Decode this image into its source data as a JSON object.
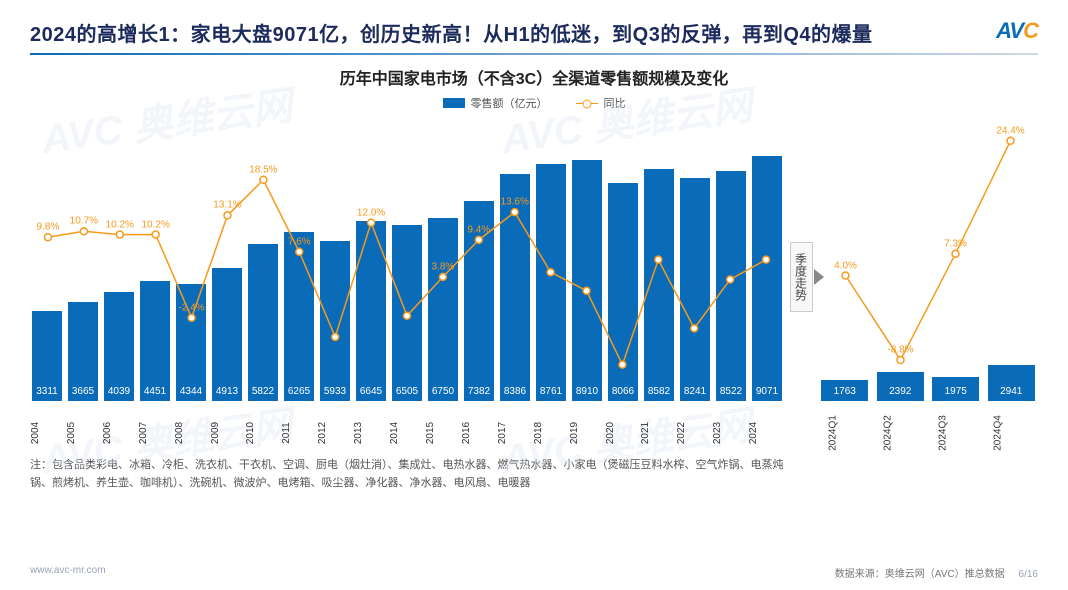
{
  "header": {
    "title": "2024的高增长1：家电大盘9071亿，创历史新高！从H1的低迷，到Q3的反弹，再到Q4的爆量",
    "logo_main": "AV",
    "logo_accent": "C"
  },
  "chart": {
    "title": "历年中国家电市场（不含3C）全渠道零售额规模及变化",
    "legend_bar": "零售额（亿元）",
    "legend_line": "同比",
    "divider_label": "季度走势",
    "main": {
      "type": "bar+line",
      "bar_color": "#0a6bb8",
      "line_color": "#f59a1d",
      "value_text_color": "#ffffff",
      "y_max": 10500,
      "line_y_min": -15,
      "line_y_max": 28,
      "categories": [
        "2004",
        "2005",
        "2006",
        "2007",
        "2008",
        "2009",
        "2010",
        "2011",
        "2012",
        "2013",
        "2014",
        "2015",
        "2016",
        "2017",
        "2018",
        "2019",
        "2020",
        "2021",
        "2022",
        "2023",
        "2024"
      ],
      "values": [
        3311,
        3665,
        4039,
        4451,
        4344,
        4913,
        5822,
        6265,
        5933,
        6645,
        6505,
        6750,
        7382,
        8386,
        8761,
        8910,
        8066,
        8582,
        8241,
        8522,
        9071
      ],
      "yoy": [
        9.8,
        10.7,
        10.2,
        10.2,
        -2.4,
        13.1,
        18.5,
        7.6,
        -5.3,
        12.0,
        -2.1,
        3.8,
        9.4,
        13.6,
        4.5,
        1.7,
        -9.5,
        6.4,
        -4.0,
        3.4,
        6.4
      ],
      "yoy_labels": [
        "9.8%",
        "10.7%",
        "10.2%",
        "10.2%",
        "-2.4%",
        "13.1%",
        "18.5%",
        "7.6%",
        "",
        "12.0%",
        "",
        "3.8%",
        "9.4%",
        "13.6%",
        "",
        "",
        "",
        "",
        "",
        "",
        ""
      ]
    },
    "sub": {
      "type": "bar+line",
      "bar_color": "#0a6bb8",
      "line_color": "#f59a1d",
      "y_max": 10500,
      "line_y_min": -15,
      "line_y_max": 28,
      "categories": [
        "2024Q1",
        "2024Q2",
        "2024Q3",
        "2024Q4"
      ],
      "values": [
        1763,
        2392,
        1975,
        2941
      ],
      "yoy": [
        4.0,
        -8.8,
        7.3,
        24.4
      ],
      "yoy_labels": [
        "4.0%",
        "-8.8%",
        "7.3%",
        "24.4%"
      ]
    }
  },
  "footnote": "注：包含品类彩电、冰箱、冷柜、洗衣机、干衣机、空调、厨电（烟灶消）、集成灶、电热水器、燃气热水器、小家电（煲磁压豆料水榨、空气炸锅、电蒸炖锅、煎烤机、养生壶、咖啡机）、洗碗机、微波炉、电烤箱、吸尘器、净化器、净水器、电风扇、电暖器",
  "footer": {
    "url": "www.avc-mr.com",
    "source": "数据来源：奥维云网（AVC）推总数据",
    "page": "6/16"
  },
  "watermarks": [
    "AVC 奥维云网",
    "AVC 奥维云网",
    "AVC 奥维云网",
    "AVC 奥维云网"
  ]
}
